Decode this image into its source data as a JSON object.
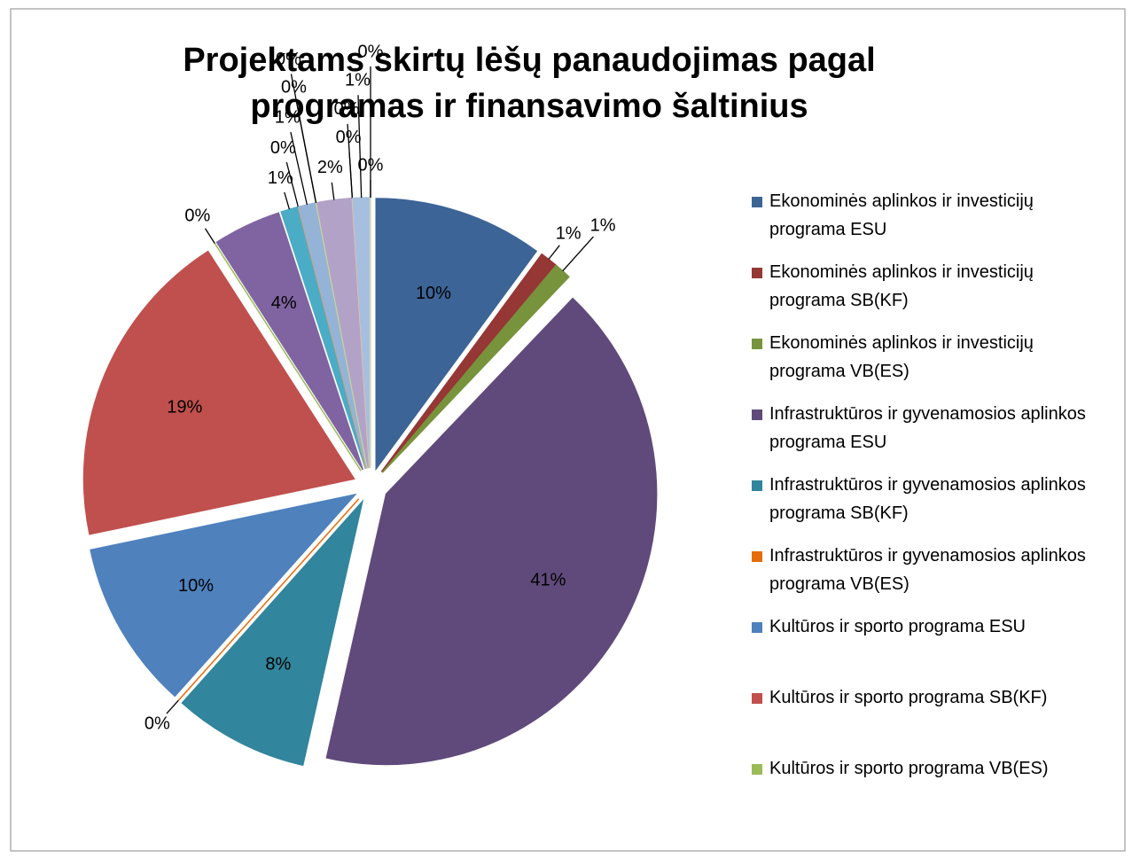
{
  "chart_data": {
    "type": "pie",
    "title": "Projektams skirtų lėšų panaudojimas pagal programas ir finansavimo šaltinius",
    "categories": [
      "Ekonominės aplinkos ir investicijų programa ESU",
      "Ekonominės aplinkos ir investicijų programa SB(KF)",
      "Ekonominės aplinkos ir investicijų programa VB(ES)",
      "Infrastruktūros ir gyvenamosios aplinkos programa ESU",
      "Infrastruktūros ir gyvenamosios aplinkos programa SB(KF)",
      "Infrastruktūros ir gyvenamosios aplinkos programa VB(ES)",
      "Kultūros ir sporto programa ESU",
      "Kultūros ir sporto programa SB(KF)",
      "Kultūros ir sporto programa VB(ES)",
      null,
      null,
      null,
      null,
      null,
      null,
      null,
      null,
      null,
      null,
      null,
      null
    ],
    "values": [
      10,
      1,
      1,
      41,
      8,
      0,
      10,
      19,
      0,
      4,
      1,
      0,
      1,
      0,
      0,
      2,
      0,
      0,
      1,
      0,
      0
    ],
    "value_labels": [
      "10%",
      "1%",
      "1%",
      "41%",
      "8%",
      "0%",
      "10%",
      "19%",
      "0%",
      "4%",
      "1%",
      "0%",
      "1%",
      "0%",
      "0%",
      "2%",
      "0%",
      "0%",
      "1%",
      "0%",
      "0%"
    ],
    "colors": [
      "#3c6496",
      "#953735",
      "#77933c",
      "#604a7b",
      "#31859c",
      "#e46c0a",
      "#4f81bd",
      "#c0504d",
      "#9bbb59",
      "#8064a2",
      "#4bacc6",
      "#f79646",
      "#95b3d7",
      "#d99694",
      "#c3d69b",
      "#b3a2c7",
      "#93cddd",
      "#fac090",
      "#a7bfde",
      "#e6b9b8",
      "#d7e4bd"
    ],
    "legend": "right"
  }
}
